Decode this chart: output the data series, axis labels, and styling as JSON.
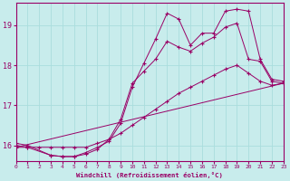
{
  "xlabel": "Windchill (Refroidissement éolien,°C)",
  "bg_color": "#c8ecec",
  "line_color": "#990066",
  "grid_color": "#aadddd",
  "xlim": [
    0,
    23
  ],
  "ylim": [
    15.6,
    19.55
  ],
  "yticks": [
    16,
    17,
    18,
    19
  ],
  "xticks": [
    0,
    1,
    2,
    3,
    4,
    5,
    6,
    7,
    8,
    9,
    10,
    11,
    12,
    13,
    14,
    15,
    16,
    17,
    18,
    19,
    20,
    21,
    22,
    23
  ],
  "line1_x": [
    0,
    1,
    2,
    3,
    4,
    5,
    6,
    7,
    8,
    9,
    10,
    11,
    12,
    13,
    14,
    15,
    16,
    17,
    18,
    19,
    20,
    21,
    22,
    23
  ],
  "line1_y": [
    15.95,
    15.95,
    15.95,
    15.95,
    15.95,
    15.95,
    15.95,
    16.05,
    16.15,
    16.3,
    16.5,
    16.7,
    16.9,
    17.1,
    17.3,
    17.45,
    17.6,
    17.75,
    17.9,
    18.0,
    17.8,
    17.6,
    17.5,
    17.55
  ],
  "line2_x": [
    0,
    1,
    3,
    4,
    5,
    6,
    7,
    8,
    9,
    10,
    11,
    12,
    13,
    14,
    15,
    16,
    17,
    18,
    19,
    20,
    21,
    22,
    23
  ],
  "line2_y": [
    16.0,
    15.95,
    15.75,
    15.72,
    15.72,
    15.78,
    15.9,
    16.15,
    16.65,
    17.55,
    17.85,
    18.15,
    18.6,
    18.45,
    18.35,
    18.55,
    18.7,
    18.95,
    19.05,
    18.15,
    18.1,
    17.6,
    17.55
  ],
  "line3_x": [
    0,
    1,
    3,
    4,
    5,
    6,
    7,
    8,
    9,
    10,
    11,
    12,
    13,
    14,
    15,
    16,
    17,
    18,
    19,
    20,
    21,
    22,
    23
  ],
  "line3_y": [
    16.05,
    16.0,
    15.75,
    15.72,
    15.72,
    15.82,
    15.95,
    16.1,
    16.55,
    17.45,
    18.05,
    18.65,
    19.3,
    19.15,
    18.5,
    18.8,
    18.8,
    19.35,
    19.4,
    19.35,
    18.15,
    17.65,
    17.6
  ],
  "line4_x": [
    0,
    23
  ],
  "line4_y": [
    15.95,
    17.55
  ]
}
